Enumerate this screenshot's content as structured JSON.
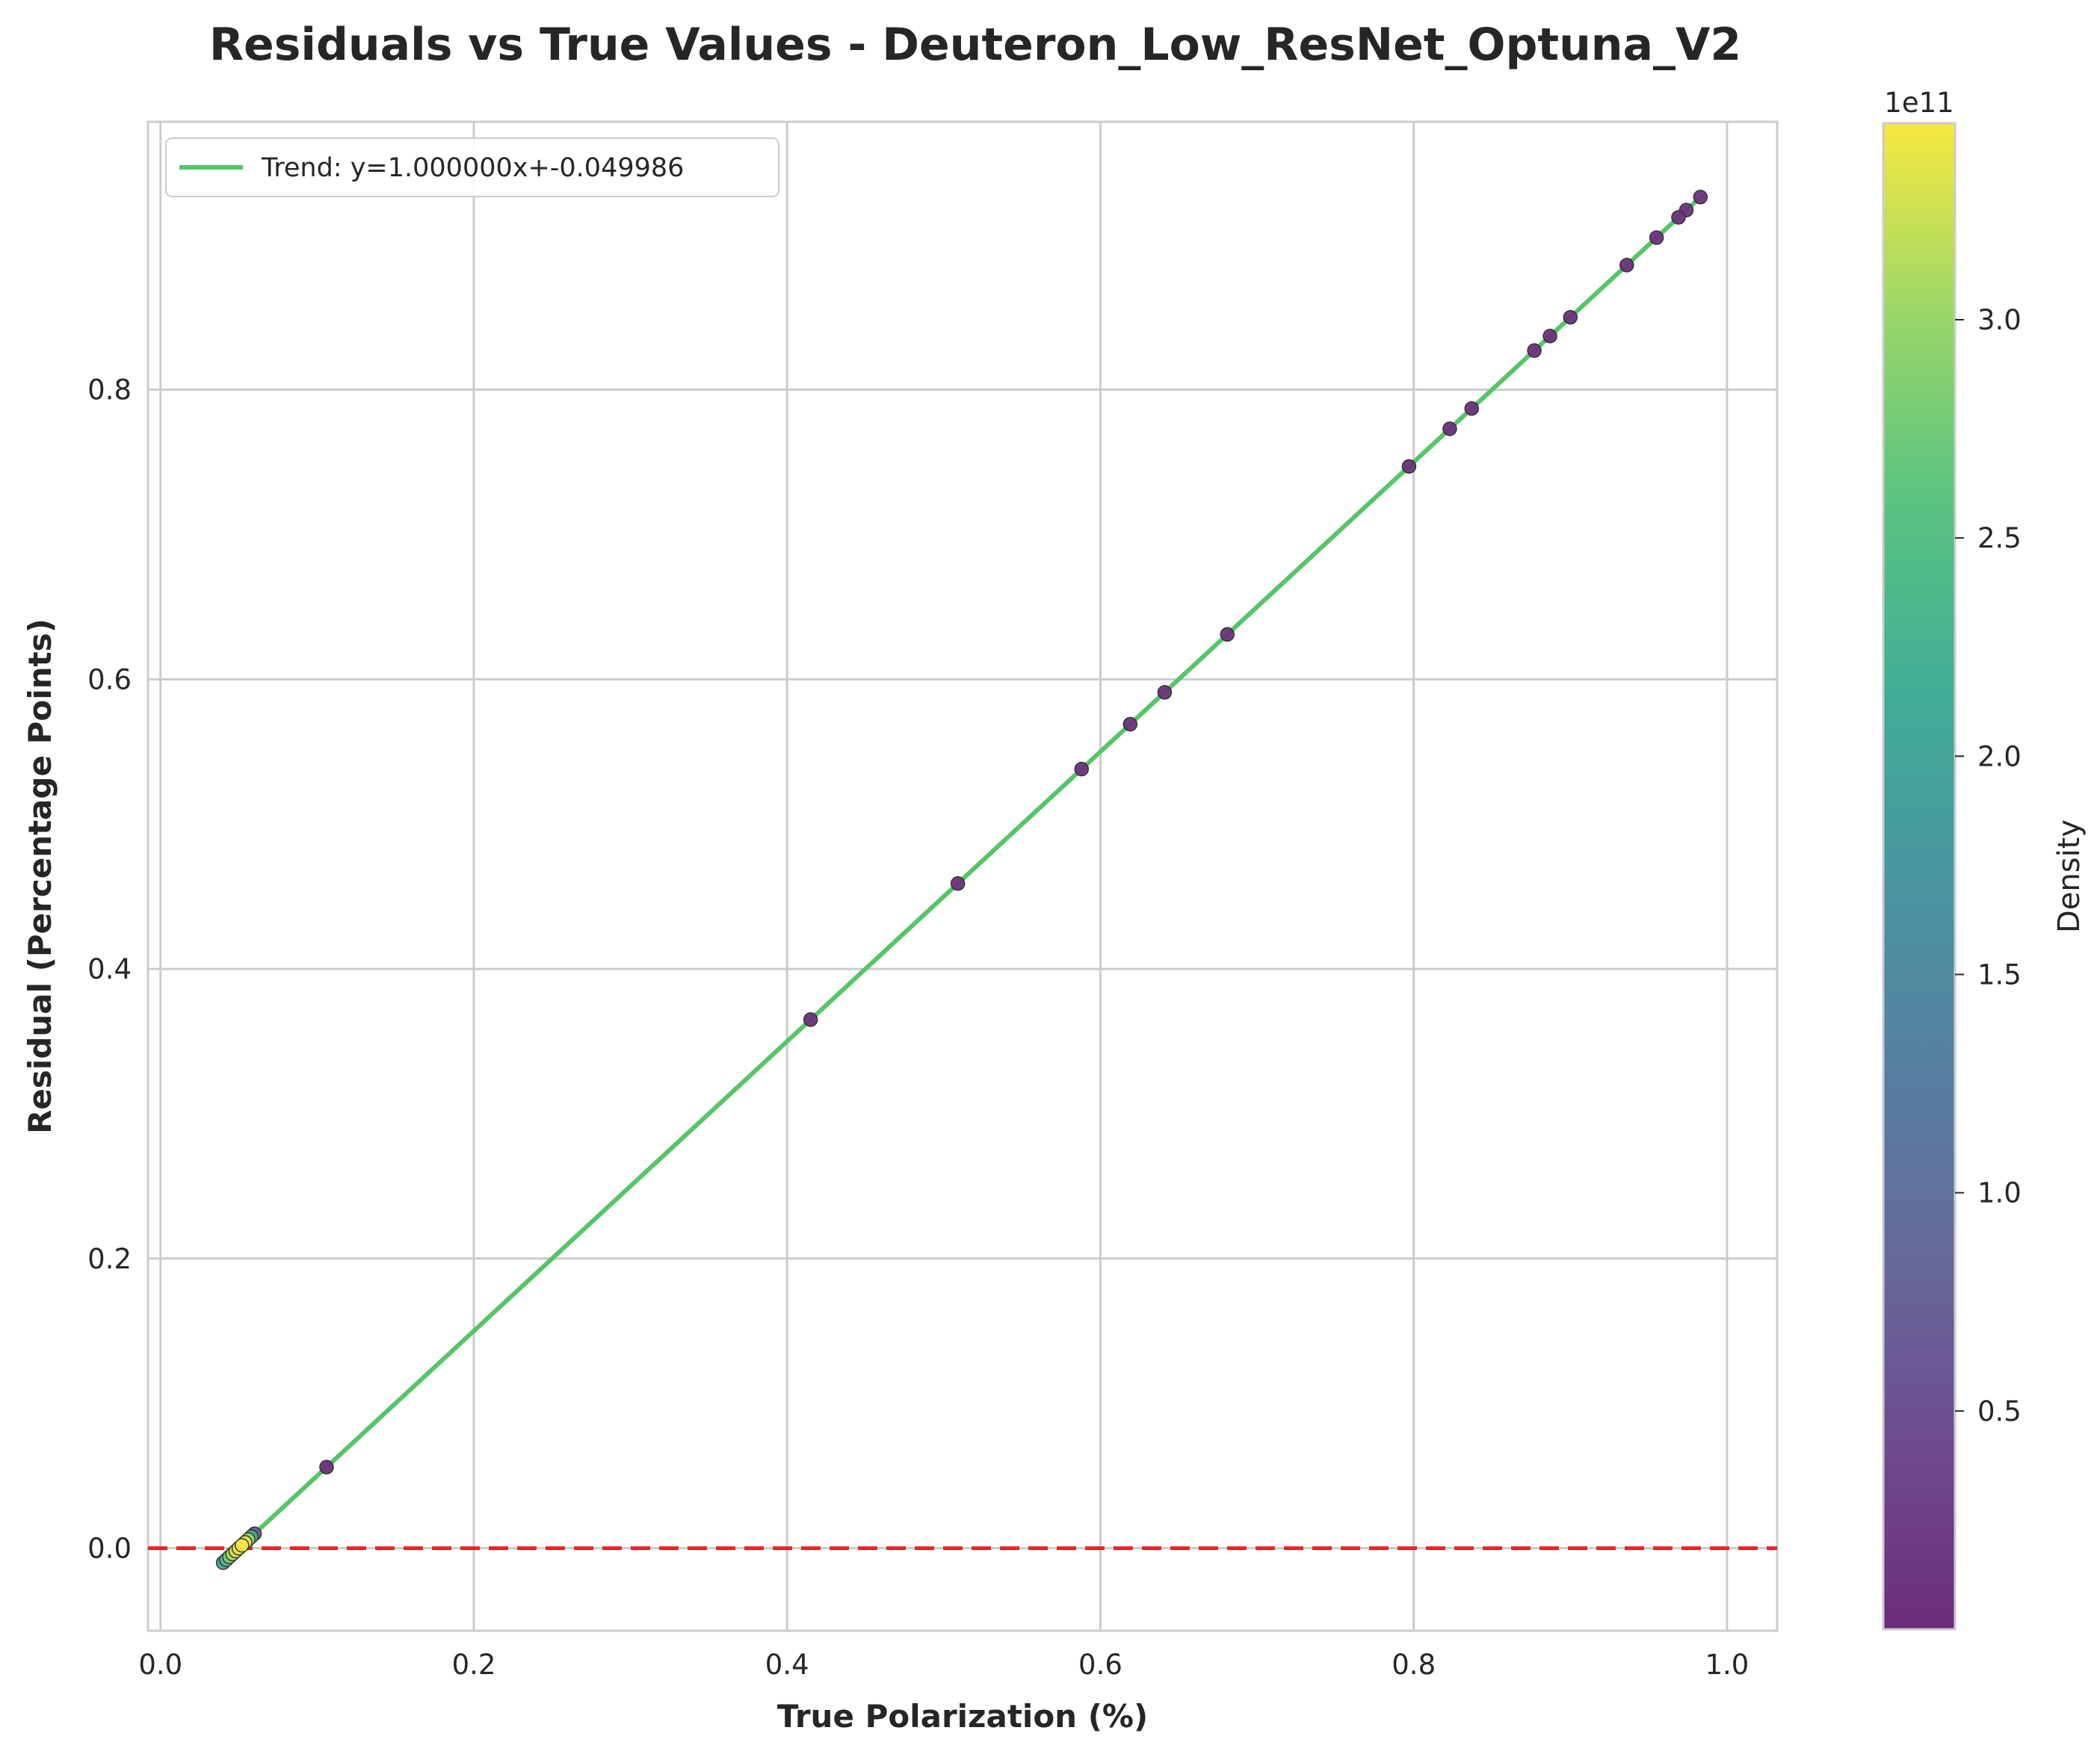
{
  "chart_data": {
    "type": "scatter",
    "title": "Residuals vs True Values - Deuteron_Low_ResNet_Optuna_V2",
    "xlabel": "True Polarization (%)",
    "ylabel": "Residual (Percentage Points)",
    "xlim": [
      -0.008,
      1.032
    ],
    "ylim": [
      -0.057,
      0.985
    ],
    "xticks": [
      0.0,
      0.2,
      0.4,
      0.6,
      0.8,
      1.0
    ],
    "xtick_labels": [
      "0.0",
      "0.2",
      "0.4",
      "0.6",
      "0.8",
      "1.0"
    ],
    "yticks": [
      0.0,
      0.2,
      0.4,
      0.6,
      0.8
    ],
    "ytick_labels": [
      "0.0",
      "0.2",
      "0.4",
      "0.6",
      "0.8"
    ],
    "grid": true,
    "legend_position": "top-left",
    "trend_line": {
      "label": "Trend: y=1.000000x+-0.049986",
      "slope": 1.0,
      "intercept": -0.049986,
      "x_range": [
        0.04,
        0.983
      ],
      "color": "#55c667"
    },
    "reference_line": {
      "y": 0.0,
      "color": "#e8262a",
      "style": "dashed"
    },
    "colorbar": {
      "label": "Density",
      "offset_text": "1e11",
      "min": 0.0,
      "max": 3.45,
      "ticks": [
        0.5,
        1.0,
        1.5,
        2.0,
        2.5,
        3.0
      ],
      "tick_labels": [
        "0.5",
        "1.0",
        "1.5",
        "2.0",
        "2.5",
        "3.0"
      ],
      "colormap": "viridis"
    },
    "points": [
      {
        "x": 0.983,
        "y": 0.933,
        "density": 0.05
      },
      {
        "x": 0.974,
        "y": 0.924,
        "density": 0.05
      },
      {
        "x": 0.969,
        "y": 0.919,
        "density": 0.05
      },
      {
        "x": 0.955,
        "y": 0.905,
        "density": 0.05
      },
      {
        "x": 0.936,
        "y": 0.886,
        "density": 0.05
      },
      {
        "x": 0.9,
        "y": 0.85,
        "density": 0.05
      },
      {
        "x": 0.887,
        "y": 0.837,
        "density": 0.05
      },
      {
        "x": 0.877,
        "y": 0.827,
        "density": 0.05
      },
      {
        "x": 0.837,
        "y": 0.787,
        "density": 0.05
      },
      {
        "x": 0.823,
        "y": 0.773,
        "density": 0.05
      },
      {
        "x": 0.797,
        "y": 0.747,
        "density": 0.05
      },
      {
        "x": 0.681,
        "y": 0.631,
        "density": 0.05
      },
      {
        "x": 0.641,
        "y": 0.591,
        "density": 0.05
      },
      {
        "x": 0.619,
        "y": 0.569,
        "density": 0.05
      },
      {
        "x": 0.588,
        "y": 0.538,
        "density": 0.05
      },
      {
        "x": 0.509,
        "y": 0.459,
        "density": 0.05
      },
      {
        "x": 0.415,
        "y": 0.365,
        "density": 0.05
      },
      {
        "x": 0.106,
        "y": 0.056,
        "density": 0.05
      },
      {
        "x": 0.06,
        "y": 0.01,
        "density": 0.6
      },
      {
        "x": 0.058,
        "y": 0.008,
        "density": 2.2
      },
      {
        "x": 0.056,
        "y": 0.006,
        "density": 3.0
      },
      {
        "x": 0.054,
        "y": 0.004,
        "density": 3.4
      },
      {
        "x": 0.052,
        "y": 0.002,
        "density": 3.45
      },
      {
        "x": 0.05,
        "y": 0.0,
        "density": 3.4
      },
      {
        "x": 0.048,
        "y": -0.002,
        "density": 3.3
      },
      {
        "x": 0.046,
        "y": -0.004,
        "density": 3.1
      },
      {
        "x": 0.044,
        "y": -0.006,
        "density": 2.8
      },
      {
        "x": 0.042,
        "y": -0.008,
        "density": 2.4
      },
      {
        "x": 0.04,
        "y": -0.01,
        "density": 2.0
      }
    ]
  }
}
